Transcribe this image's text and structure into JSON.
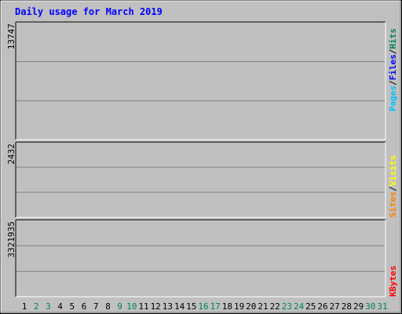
{
  "chart_data": {
    "type": "bar",
    "title": "Daily usage for March 2019",
    "x": [
      "1",
      "2",
      "3",
      "4",
      "5",
      "6",
      "7",
      "8",
      "9",
      "10",
      "11",
      "12",
      "13",
      "14",
      "15",
      "16",
      "17",
      "18",
      "19",
      "20",
      "21",
      "22",
      "23",
      "24",
      "25",
      "26",
      "27",
      "28",
      "29",
      "30",
      "31"
    ],
    "weekend_days": [
      "2",
      "3",
      "9",
      "10",
      "16",
      "17",
      "23",
      "24",
      "30",
      "31"
    ],
    "panels": [
      {
        "id": "hits",
        "max_label": "13747",
        "ymax": 13747,
        "series": [
          {
            "name": "Pages",
            "color": "#00c0ff",
            "values": [
              0,
              0,
              0,
              0,
              0,
              0,
              0,
              0,
              0,
              0,
              0,
              0,
              0,
              0,
              0,
              0,
              0,
              0,
              0,
              0,
              0,
              0,
              0,
              0,
              0,
              0,
              0,
              0,
              0,
              0,
              0
            ]
          },
          {
            "name": "Files",
            "color": "#0000ff",
            "values": [
              0,
              0,
              0,
              0,
              0,
              0,
              0,
              0,
              0,
              0,
              0,
              0,
              0,
              0,
              0,
              0,
              0,
              0,
              0,
              0,
              0,
              0,
              0,
              0,
              0,
              0,
              0,
              0,
              0,
              0,
              0
            ]
          },
          {
            "name": "Hits",
            "color": "#008060",
            "values": [
              0,
              0,
              0,
              0,
              0,
              0,
              0,
              0,
              0,
              0,
              0,
              0,
              0,
              0,
              0,
              0,
              0,
              0,
              0,
              0,
              0,
              0,
              0,
              0,
              0,
              0,
              0,
              0,
              0,
              0,
              0
            ]
          }
        ]
      },
      {
        "id": "visits",
        "max_label": "2432",
        "ymax": 2432,
        "series": [
          {
            "name": "Sites",
            "color": "#ff8000",
            "values": [
              0,
              0,
              0,
              0,
              0,
              0,
              0,
              0,
              0,
              0,
              0,
              0,
              0,
              0,
              0,
              0,
              0,
              0,
              0,
              0,
              0,
              0,
              0,
              0,
              0,
              0,
              0,
              0,
              0,
              0,
              0
            ]
          },
          {
            "name": "Visits",
            "color": "#ffff00",
            "values": [
              0,
              0,
              0,
              0,
              0,
              0,
              0,
              0,
              0,
              0,
              0,
              0,
              0,
              0,
              0,
              0,
              0,
              0,
              0,
              0,
              0,
              0,
              0,
              0,
              0,
              0,
              0,
              0,
              0,
              0,
              0
            ]
          }
        ]
      },
      {
        "id": "kbytes",
        "max_label": "3321935",
        "ymax": 3321935,
        "series": [
          {
            "name": "KBytes",
            "color": "#ff0000",
            "values": [
              0,
              0,
              0,
              0,
              0,
              0,
              0,
              0,
              0,
              0,
              0,
              0,
              0,
              0,
              0,
              0,
              0,
              0,
              0,
              0,
              0,
              0,
              0,
              0,
              0,
              0,
              0,
              0,
              0,
              0,
              0
            ]
          }
        ]
      }
    ]
  }
}
